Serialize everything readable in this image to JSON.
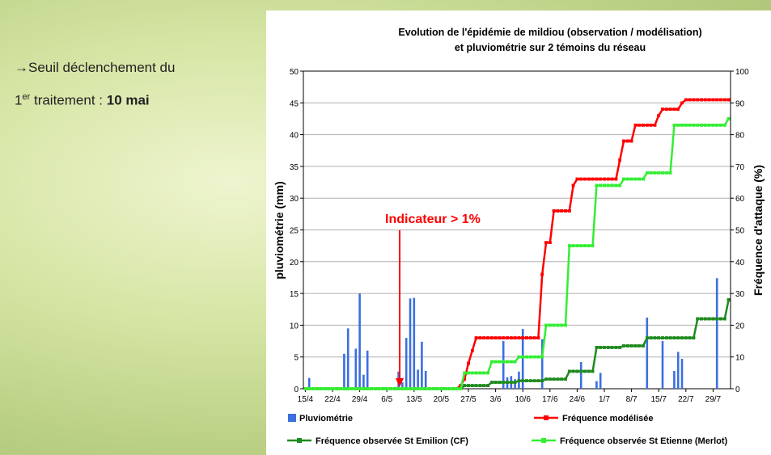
{
  "slide_note": {
    "line1": "→Seuil déclenchement du",
    "ordinal": "1",
    "ordinal_suffix": "er",
    "middle": " traitement : ",
    "date": "10 mai"
  },
  "chart_data": {
    "type": "bar",
    "title": [
      "Evolution de l'épidémie de mildiou (observation / modélisation)",
      "et pluviométrie sur 2 témoins du réseau"
    ],
    "y_label": "pluviométrie (mm)",
    "y2_label": "Fréquence d'attaque (%)",
    "annotation": "Indicateur > 1%",
    "categories": [
      "15/4",
      null,
      null,
      null,
      null,
      null,
      null,
      "22/4",
      null,
      null,
      null,
      null,
      null,
      null,
      "29/4",
      null,
      null,
      null,
      null,
      null,
      null,
      "6/5",
      null,
      null,
      null,
      null,
      null,
      null,
      "13/5",
      null,
      null,
      null,
      null,
      null,
      null,
      "20/5",
      null,
      null,
      null,
      null,
      null,
      null,
      "27/5",
      null,
      null,
      null,
      null,
      null,
      null,
      "3/6",
      null,
      null,
      null,
      null,
      null,
      null,
      "10/6",
      null,
      null,
      null,
      null,
      null,
      null,
      "17/6",
      null,
      null,
      null,
      null,
      null,
      null,
      "24/6",
      null,
      null,
      null,
      null,
      null,
      null,
      "1/7",
      null,
      null,
      null,
      null,
      null,
      null,
      "8/7",
      null,
      null,
      null,
      null,
      null,
      null,
      "15/7",
      null,
      null,
      null,
      null,
      null,
      null,
      "22/7",
      null,
      null,
      null,
      null,
      null,
      null,
      "29/7",
      null,
      null,
      null,
      null
    ],
    "ylim": [
      0,
      50
    ],
    "yticks": [
      0,
      5,
      10,
      15,
      20,
      25,
      30,
      35,
      40,
      45,
      50
    ],
    "y2lim": [
      0,
      100
    ],
    "y2ticks": [
      0,
      10,
      20,
      30,
      40,
      50,
      60,
      70,
      80,
      90,
      100
    ],
    "grid": true,
    "series": [
      {
        "name": "Pluviométrie",
        "type": "bar",
        "color": "#3b6fe0",
        "values": [
          0,
          1.7,
          0,
          0,
          0,
          0,
          0,
          0,
          0,
          0,
          5.5,
          9.5,
          0,
          6.3,
          15,
          2.2,
          6,
          0,
          0,
          0,
          0,
          0,
          0,
          0,
          2.7,
          1,
          8,
          14.2,
          14.3,
          3,
          7.4,
          2.8,
          0,
          0,
          0,
          0,
          0,
          0,
          0,
          0,
          0,
          0,
          0,
          0,
          0,
          0,
          0,
          0,
          0,
          0,
          0,
          7.5,
          1.8,
          2,
          1.5,
          2.7,
          9.4,
          0,
          0,
          0,
          0,
          7.8,
          0,
          0,
          0,
          0,
          0,
          0,
          0,
          0,
          0,
          4.2,
          0,
          0,
          0,
          1.2,
          2.5,
          0,
          0,
          0,
          0,
          0,
          0,
          0,
          0,
          0,
          0,
          0,
          11.2,
          0,
          0,
          0,
          7.5,
          0,
          0,
          2.8,
          5.8,
          4.7,
          0,
          0,
          0,
          0,
          0,
          0,
          0,
          0,
          17.4,
          0,
          0,
          0
        ]
      },
      {
        "name": "Fréquence modélisée",
        "type": "line",
        "axis": "y2",
        "color": "#ff0000",
        "values": [
          0,
          0,
          0,
          0,
          0,
          0,
          0,
          0,
          0,
          0,
          0,
          0,
          0,
          0,
          0,
          0,
          0,
          0,
          0,
          0,
          0,
          0,
          0,
          0,
          0,
          0,
          0,
          0,
          0,
          0,
          0,
          0,
          0,
          0,
          0,
          0,
          0,
          0,
          0,
          0,
          1,
          3,
          8,
          12,
          16,
          16,
          16,
          16,
          16,
          16,
          16,
          16,
          16,
          16,
          16,
          16,
          16,
          16,
          16,
          16,
          16,
          36,
          46,
          46,
          56,
          56,
          56,
          56,
          56,
          64,
          66,
          66,
          66,
          66,
          66,
          66,
          66,
          66,
          66,
          66,
          66,
          72,
          78,
          78,
          78,
          83,
          83,
          83,
          83,
          83,
          83,
          86,
          88,
          88,
          88,
          88,
          88,
          90,
          91,
          91,
          91,
          91,
          91,
          91,
          91,
          91,
          91,
          91,
          91,
          91
        ]
      },
      {
        "name": "Fréquence observée St Emilion (CF)",
        "type": "line",
        "axis": "y2",
        "color": "#1f8a1f",
        "values": [
          0,
          0,
          0,
          0,
          0,
          0,
          0,
          0,
          0,
          0,
          0,
          0,
          0,
          0,
          0,
          0,
          0,
          0,
          0,
          0,
          0,
          0,
          0,
          0,
          0,
          0,
          0,
          0,
          0,
          0,
          0,
          0,
          0,
          0,
          0,
          0,
          0,
          0,
          0,
          0,
          0,
          1,
          1,
          1,
          1,
          1,
          1,
          1,
          2,
          2,
          2,
          2,
          2,
          2,
          2,
          2.5,
          2.5,
          2.5,
          2.5,
          2.5,
          2.5,
          2.5,
          3,
          3,
          3,
          3,
          3,
          3,
          5.5,
          5.5,
          5.5,
          5.5,
          5.5,
          5.5,
          5.5,
          13,
          13,
          13,
          13,
          13,
          13,
          13,
          13.5,
          13.5,
          13.5,
          13.5,
          13.5,
          13.5,
          16,
          16,
          16,
          16,
          16,
          16,
          16,
          16,
          16,
          16,
          16,
          16,
          16,
          22,
          22,
          22,
          22,
          22,
          22,
          22,
          22,
          28
        ]
      },
      {
        "name": "Fréquence observée St Etienne (Merlot)",
        "type": "line",
        "axis": "y2",
        "color": "#33ee33",
        "values": [
          0,
          0,
          0,
          0,
          0,
          0,
          0,
          0,
          0,
          0,
          0,
          0,
          0,
          0,
          0,
          0,
          0,
          0,
          0,
          0,
          0,
          0,
          0,
          0,
          0,
          0,
          0,
          0,
          0,
          0,
          0,
          0,
          0,
          0,
          0,
          0,
          0,
          0,
          0,
          0,
          0,
          5,
          5,
          5,
          5,
          5,
          5,
          5,
          8.5,
          8.5,
          8.5,
          8.5,
          8.5,
          8.5,
          8.5,
          10,
          10,
          10,
          10,
          10,
          10,
          10,
          20,
          20,
          20,
          20,
          20,
          20,
          45,
          45,
          45,
          45,
          45,
          45,
          45,
          64,
          64,
          64,
          64,
          64,
          64,
          64,
          66,
          66,
          66,
          66,
          66,
          66,
          68,
          68,
          68,
          68,
          68,
          68,
          68,
          83,
          83,
          83,
          83,
          83,
          83,
          83,
          83,
          83,
          83,
          83,
          83,
          83,
          83,
          85
        ]
      }
    ]
  }
}
